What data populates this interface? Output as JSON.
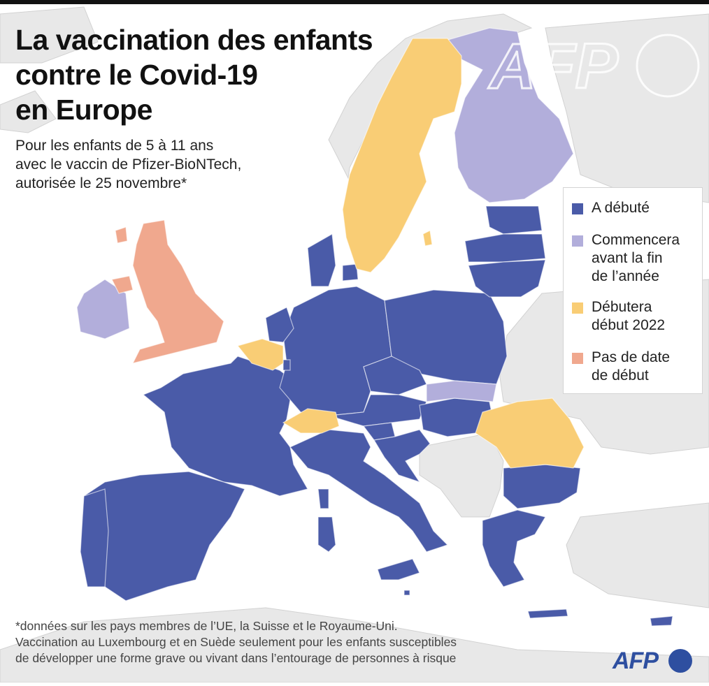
{
  "title": {
    "line1": "La vaccination des enfants",
    "line2": "contre le Covid-19",
    "line3": "en Europe"
  },
  "subtitle": {
    "line1": "Pour les enfants de 5 à 11 ans",
    "line2": "avec le vaccin de Pfizer-BioNTech,",
    "line3": "autorisée le 25 novembre*"
  },
  "colors": {
    "started": "#4a5ba8",
    "before_year_end": "#b2aedb",
    "early_2022": "#f9cd75",
    "no_date": "#f0a88e",
    "land": "#e8e8e8",
    "sea": "#ffffff",
    "border": "#c8c8c8",
    "accent": "#2e4fa0"
  },
  "legend": {
    "items": [
      {
        "key": "started",
        "lines": [
          "A débuté"
        ],
        "color": "#4a5ba8"
      },
      {
        "key": "before_year_end",
        "lines": [
          "Commencera",
          "avant la fin",
          "de l’année"
        ],
        "color": "#b2aedb"
      },
      {
        "key": "early_2022",
        "lines": [
          "Débutera",
          "début 2022"
        ],
        "color": "#f9cd75"
      },
      {
        "key": "no_date",
        "lines": [
          "Pas de date",
          "de début"
        ],
        "color": "#f0a88e"
      }
    ]
  },
  "footnote": {
    "line1": "*données sur les pays membres de l’UE, la Suisse et le Royaume-Uni.",
    "line2": "Vaccination au Luxembourg et en Suède seulement pour les enfants susceptibles",
    "line3": "de développer une forme grave ou vivant dans l’entourage de personnes à risque"
  },
  "logo": {
    "text": "AFP",
    "watermark": "AFP"
  },
  "icons": {
    "logo": "afp-logo",
    "watermark": "afp-watermark-logo"
  },
  "countries": {
    "started": [
      "France",
      "Espagne",
      "Portugal",
      "Italie",
      "Allemagne",
      "Pologne",
      "Pays-Bas",
      "Danemark",
      "Tchéquie",
      "Autriche",
      "Hongrie",
      "Croatie",
      "Slovénie",
      "Grèce",
      "Bulgarie",
      "Estonie",
      "Lettonie",
      "Lituanie",
      "Chypre",
      "Malte",
      "Luxembourg"
    ],
    "before_year_end": [
      "Finlande",
      "Irlande",
      "Slovaquie"
    ],
    "early_2022": [
      "Suède",
      "Belgique",
      "Suisse",
      "Roumanie"
    ],
    "no_date": [
      "Royaume-Uni"
    ]
  }
}
